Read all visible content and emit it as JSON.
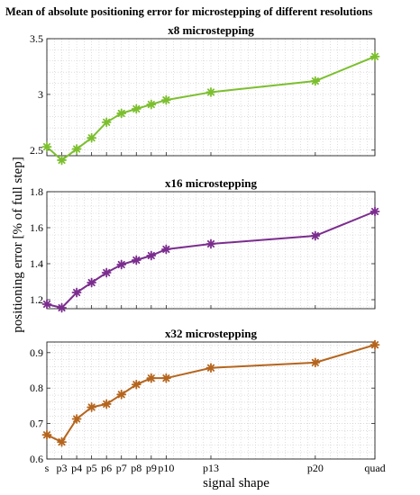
{
  "figure": {
    "title": "Mean of absolute positioning error for microstepping of different resolutions",
    "ylabel": "positioning error [% of full step]",
    "xlabel": "signal shape"
  },
  "chart_data": [
    {
      "type": "line",
      "title": "x8 microstepping",
      "color": "#7cbf2e",
      "marker": "asterisk",
      "categories": [
        "s",
        "p3",
        "p4",
        "p5",
        "p6",
        "p7",
        "p8",
        "p9",
        "p10",
        "p13",
        "p20",
        "quad"
      ],
      "x": [
        2,
        3,
        4,
        5,
        6,
        7,
        8,
        9,
        10,
        13,
        20,
        24
      ],
      "values": [
        2.53,
        2.41,
        2.51,
        2.61,
        2.75,
        2.83,
        2.87,
        2.91,
        2.95,
        3.02,
        3.12,
        3.34
      ],
      "ylim": [
        2.45,
        3.5
      ],
      "yticks": [
        "2.5",
        "3",
        "3.5"
      ],
      "grid": true
    },
    {
      "type": "line",
      "title": "x16 microstepping",
      "color": "#7b2d8e",
      "marker": "asterisk",
      "categories": [
        "s",
        "p3",
        "p4",
        "p5",
        "p6",
        "p7",
        "p8",
        "p9",
        "p10",
        "p13",
        "p20",
        "quad"
      ],
      "x": [
        2,
        3,
        4,
        5,
        6,
        7,
        8,
        9,
        10,
        13,
        20,
        24
      ],
      "values": [
        1.175,
        1.155,
        1.24,
        1.295,
        1.35,
        1.395,
        1.42,
        1.445,
        1.48,
        1.51,
        1.555,
        1.69
      ],
      "ylim": [
        1.15,
        1.8
      ],
      "yticks": [
        "1.2",
        "1.4",
        "1.6",
        "1.8"
      ],
      "grid": true
    },
    {
      "type": "line",
      "title": "x32 microstepping",
      "color": "#b5651d",
      "marker": "asterisk",
      "categories": [
        "s",
        "p3",
        "p4",
        "p5",
        "p6",
        "p7",
        "p8",
        "p9",
        "p10",
        "p13",
        "p20",
        "quad"
      ],
      "x": [
        2,
        3,
        4,
        5,
        6,
        7,
        8,
        9,
        10,
        13,
        20,
        24
      ],
      "values": [
        0.668,
        0.648,
        0.713,
        0.746,
        0.755,
        0.782,
        0.81,
        0.828,
        0.828,
        0.857,
        0.872,
        0.922
      ],
      "ylim": [
        0.6,
        0.93
      ],
      "yticks": [
        "0.6",
        "0.7",
        "0.8",
        "0.9"
      ],
      "grid": true
    }
  ]
}
